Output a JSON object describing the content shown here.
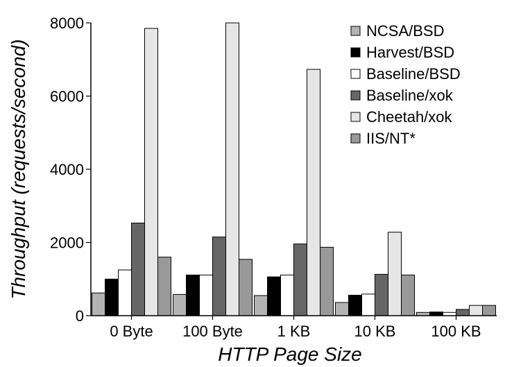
{
  "chart_data": {
    "type": "bar",
    "title": "",
    "xlabel": "HTTP Page Size",
    "ylabel": "Throughput (requests/second)",
    "categories": [
      "0 Byte",
      "100 Byte",
      "1 KB",
      "10 KB",
      "100 KB"
    ],
    "ylim": [
      0,
      8000
    ],
    "yticks": [
      0,
      2000,
      4000,
      6000,
      8000
    ],
    "grid": false,
    "legend_position": "top-right",
    "series": [
      {
        "name": "NCSA/BSD",
        "color": "#b3b3b3",
        "values": [
          620,
          580,
          550,
          360,
          90
        ]
      },
      {
        "name": "Harvest/BSD",
        "color": "#000000",
        "values": [
          1000,
          1110,
          1060,
          560,
          100
        ]
      },
      {
        "name": "Baseline/BSD",
        "color": "#ffffff",
        "values": [
          1250,
          1110,
          1110,
          590,
          90
        ]
      },
      {
        "name": "Baseline/xok",
        "color": "#666666",
        "values": [
          2530,
          2150,
          1960,
          1130,
          170
        ]
      },
      {
        "name": "Cheetah/xok",
        "color": "#e6e6e6",
        "values": [
          7850,
          8000,
          6730,
          2280,
          280
        ]
      },
      {
        "name": "IIS/NT*",
        "color": "#999999",
        "values": [
          1600,
          1540,
          1870,
          1110,
          280
        ]
      }
    ]
  }
}
